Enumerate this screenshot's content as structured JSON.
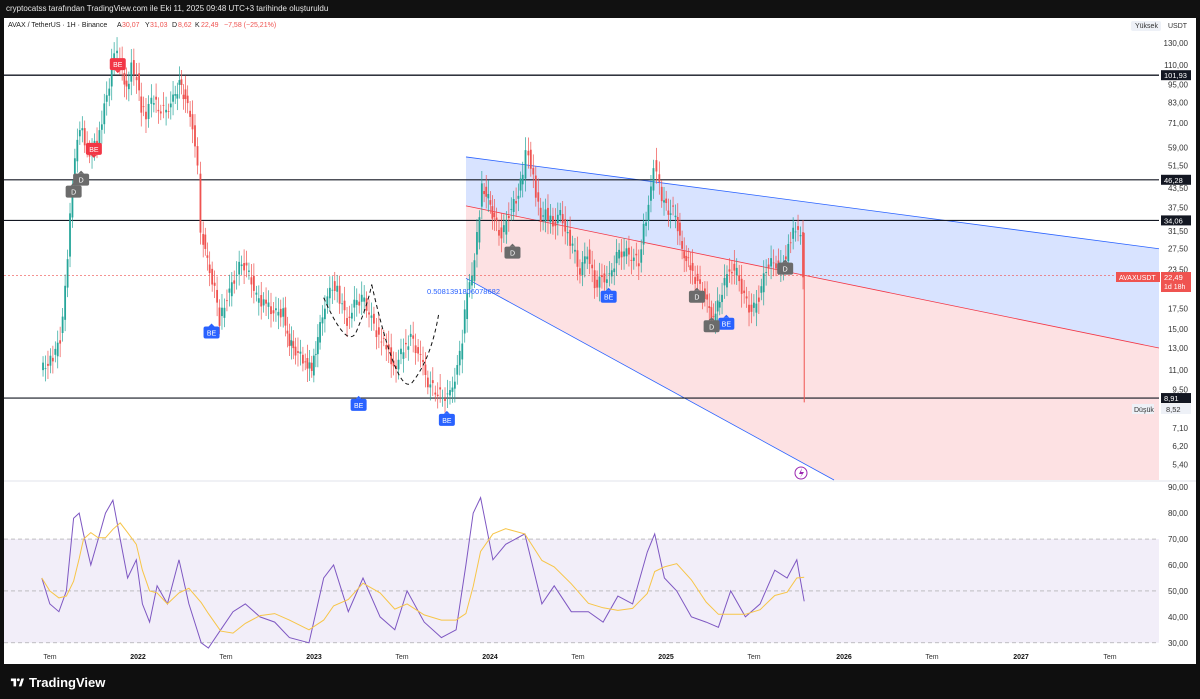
{
  "header": {
    "attribution": "cryptocatss tarafından TradingView.com ile Eki 11, 2025 09:48 UTC+3 tarihinde oluşturuldu"
  },
  "legend": {
    "symbol": "AVAX / TetherUS · 1H · Binance",
    "o_label": "A",
    "o_value": "30,07",
    "h_label": "Y",
    "h_value": "31,03",
    "l_label": "D",
    "l_value": "8,62",
    "c_label": "K",
    "c_value": "22,49",
    "change": "−7,58 (−25,21%)"
  },
  "price_scale": {
    "currency": "USDT",
    "scale_mode": "Yüksek",
    "low_tag": "Düşük",
    "low_value": "8,52",
    "ticker_tag": "AVAXUSDT",
    "last_price": "22,49",
    "countdown": "1d 18h"
  },
  "footer": {
    "brand": "TradingView"
  },
  "colors": {
    "up": "#26a69a",
    "down": "#ef5350",
    "channel_blue": "#2962ff",
    "channel_red": "#f23645",
    "rsi_line": "#7e57c2",
    "rsi_ma": "#f7c548",
    "signal_d": "#6b6b6b",
    "signal_be_blue": "#2962ff",
    "signal_be_red": "#f23645"
  },
  "chart_data": [
    {
      "type": "line",
      "subtype": "candlestick",
      "log_scale": true,
      "ylim": [
        4.8,
        150
      ],
      "y_ticks": [
        "130,00",
        "110,00",
        "95,00",
        "83,00",
        "71,00",
        "59,00",
        "51,50",
        "43,50",
        "37,50",
        "31,50",
        "27,50",
        "23,50",
        "17,50",
        "15,00",
        "13,00",
        "11,00",
        "9,50",
        "7,10",
        "6,20",
        "5,40"
      ],
      "x_ticks": [
        "Tem",
        "2022",
        "Tem",
        "2023",
        "Tem",
        "2024",
        "Tem",
        "2025",
        "Tem",
        "2026",
        "Tem",
        "2027",
        "Tem"
      ],
      "horizontal_levels": [
        {
          "label": "101,93",
          "value": 101.93
        },
        {
          "label": "46,28",
          "value": 46.28
        },
        {
          "label": "34,06",
          "value": 34.06
        },
        {
          "label": "8,91",
          "value": 8.91
        }
      ],
      "annotation_text": "0.5081391806078682",
      "signals": [
        {
          "label": "BE",
          "kind": "sell",
          "x": "2021-10",
          "price": 58
        },
        {
          "label": "BE",
          "kind": "sell",
          "x": "2021-11-20",
          "price": 110
        },
        {
          "label": "D",
          "kind": "down",
          "x": "2021-08-20",
          "price": 42
        },
        {
          "label": "D",
          "kind": "down",
          "x": "2021-09-05",
          "price": 46
        },
        {
          "label": "BE",
          "kind": "buy",
          "x": "2022-06",
          "price": 14.5
        },
        {
          "label": "BE",
          "kind": "buy",
          "x": "2023-04",
          "price": 8.4
        },
        {
          "label": "BE",
          "kind": "buy",
          "x": "2023-10",
          "price": 7.5
        },
        {
          "label": "D",
          "kind": "down",
          "x": "2024-02-15",
          "price": 26.5
        },
        {
          "label": "BE",
          "kind": "buy",
          "x": "2024-09",
          "price": 19
        },
        {
          "label": "D",
          "kind": "down",
          "x": "2025-03",
          "price": 19
        },
        {
          "label": "BE",
          "kind": "buy",
          "x": "2025-05",
          "price": 15.5
        },
        {
          "label": "D",
          "kind": "down",
          "x": "2025-04",
          "price": 15.2
        },
        {
          "label": "D",
          "kind": "down",
          "x": "2025-09",
          "price": 23.5
        }
      ]
    },
    {
      "type": "line",
      "name": "RSI",
      "ylim": [
        28,
        92
      ],
      "y_ticks": [
        "90,00",
        "80,00",
        "70,00",
        "60,00",
        "50,00",
        "40,00",
        "30,00"
      ],
      "band": [
        30,
        70
      ],
      "midline": 50
    }
  ]
}
